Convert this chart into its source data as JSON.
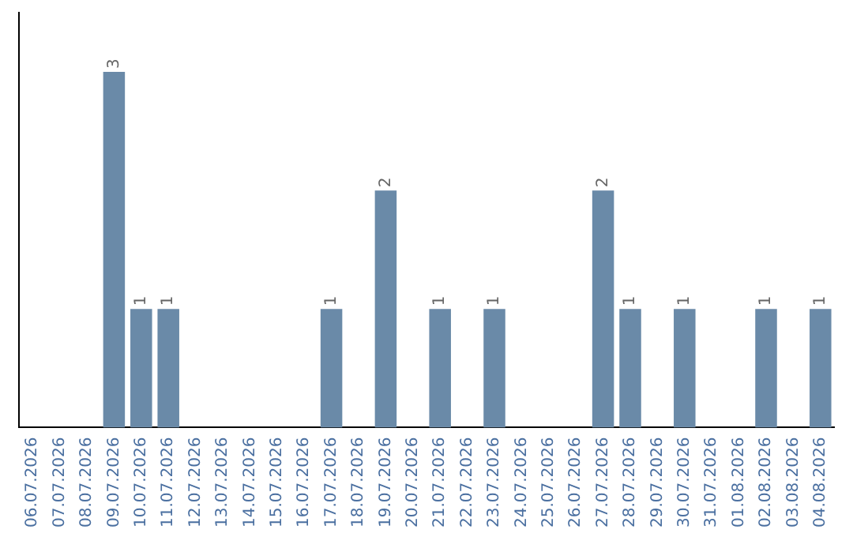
{
  "chart_data": {
    "type": "bar",
    "categories": [
      "06.07.2026",
      "07.07.2026",
      "08.07.2026",
      "09.07.2026",
      "10.07.2026",
      "11.07.2026",
      "12.07.2026",
      "13.07.2026",
      "14.07.2026",
      "15.07.2026",
      "16.07.2026",
      "17.07.2026",
      "18.07.2026",
      "19.07.2026",
      "20.07.2026",
      "21.07.2026",
      "22.07.2026",
      "23.07.2026",
      "24.07.2026",
      "25.07.2026",
      "26.07.2026",
      "27.07.2026",
      "28.07.2026",
      "29.07.2026",
      "30.07.2026",
      "31.07.2026",
      "01.08.2026",
      "02.08.2026",
      "03.08.2026",
      "04.08.2026"
    ],
    "values": [
      0,
      0,
      0,
      3,
      1,
      1,
      0,
      0,
      0,
      0,
      0,
      1,
      0,
      2,
      0,
      1,
      0,
      1,
      0,
      0,
      0,
      2,
      1,
      0,
      1,
      0,
      0,
      1,
      0,
      1
    ],
    "value_labels": [
      null,
      null,
      null,
      "3",
      "1",
      "1",
      null,
      null,
      null,
      null,
      null,
      "1",
      null,
      "2",
      null,
      "1",
      null,
      "1",
      null,
      null,
      null,
      "2",
      "1",
      null,
      "1",
      null,
      null,
      "1",
      null,
      "1"
    ],
    "color": "#6a8aa8",
    "grid": false,
    "legend": false,
    "tick_labels": "x"
  }
}
